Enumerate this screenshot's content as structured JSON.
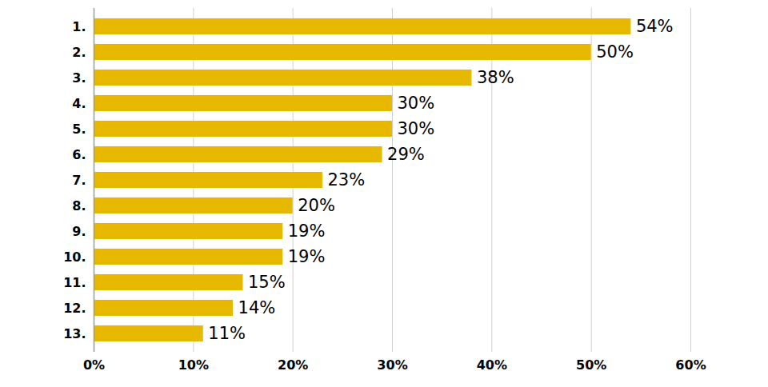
{
  "chart_data": {
    "type": "bar",
    "orientation": "horizontal",
    "categories": [
      "1.",
      "2.",
      "3.",
      "4.",
      "5.",
      "6.",
      "7.",
      "8.",
      "9.",
      "10.",
      "11.",
      "12.",
      "13."
    ],
    "values": [
      54,
      50,
      38,
      30,
      30,
      29,
      23,
      20,
      19,
      19,
      15,
      14,
      11
    ],
    "value_labels": [
      "54%",
      "50%",
      "38%",
      "30%",
      "30%",
      "29%",
      "23%",
      "20%",
      "19%",
      "19%",
      "15%",
      "14%",
      "11%"
    ],
    "data_labels": true,
    "color": "#e6b800",
    "xlim": [
      0,
      60
    ],
    "xticks": [
      {
        "value": 0,
        "label": "0%"
      },
      {
        "value": 10,
        "label": "10%"
      },
      {
        "value": 20,
        "label": "20%"
      },
      {
        "value": 30,
        "label": "30%"
      },
      {
        "value": 40,
        "label": "40%"
      },
      {
        "value": 50,
        "label": "50%"
      },
      {
        "value": 60,
        "label": "60%"
      }
    ],
    "grid": true
  }
}
